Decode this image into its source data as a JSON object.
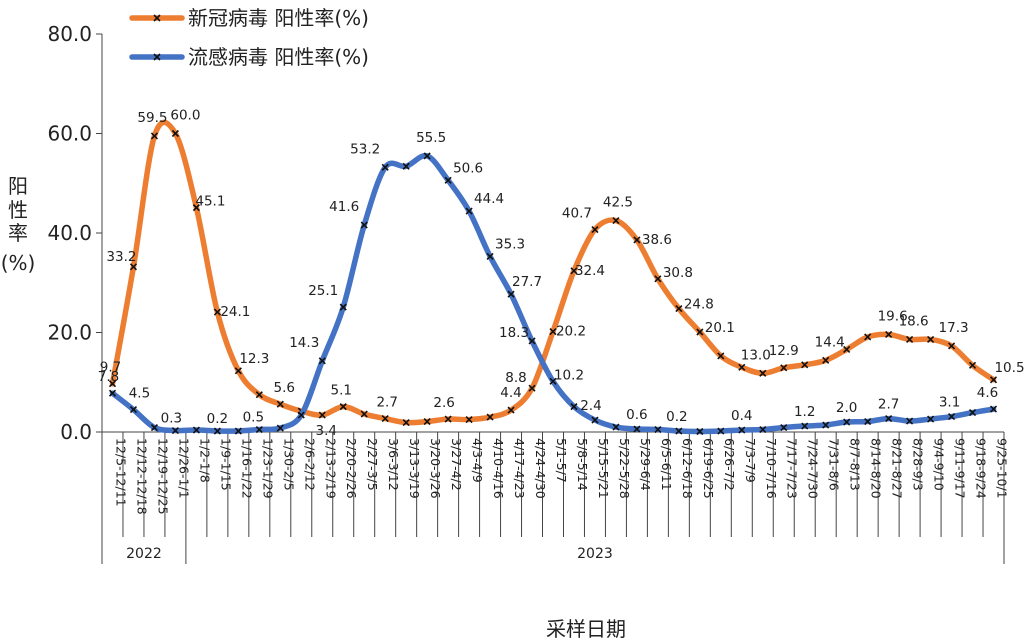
{
  "chart_data": {
    "type": "line",
    "xlabel": "采样日期",
    "ylabel": [
      "阳",
      "性",
      "率",
      "(%)"
    ],
    "ylim": [
      0,
      80
    ],
    "yticks": [
      "0.0",
      "20.0",
      "40.0",
      "60.0",
      "80.0"
    ],
    "grid": false,
    "legend_position": "top-left",
    "categories": [
      "12/5-12/11",
      "12/12-12/18",
      "12/19-12/25",
      "12/26-1/1",
      "1/2-1/8",
      "1/9-1/15",
      "1/16-1/22",
      "1/23-1/29",
      "1/30-2/5",
      "2/6-2/12",
      "2/13-2/19",
      "2/20-2/26",
      "2/27-3/5",
      "3/6-3/12",
      "3/13-3/19",
      "3/20-3/26",
      "3/27-4/2",
      "4/3-4/9",
      "4/10-4/16",
      "4/17-4/23",
      "4/24-4/30",
      "5/1-5/7",
      "5/8-5/14",
      "5/15-5/21",
      "5/22-5/28",
      "5/29-6/4",
      "6/5-6/11",
      "6/12-6/18",
      "6/19-6/25",
      "6/26-7/2",
      "7/3-7/9",
      "7/10-7/16",
      "7/17-7/23",
      "7/24-7/30",
      "7/31-8/6",
      "8/7-8/13",
      "8/14-8/20",
      "8/21-8/27",
      "8/28-9/3",
      "9/4-9/10",
      "9/11-9/17",
      "9/18-9/24",
      "9/25-10/1"
    ],
    "year_groups": [
      {
        "label": "2022",
        "count": 4
      },
      {
        "label": "2023",
        "count": 39
      }
    ],
    "series": [
      {
        "name": "新冠病毒 阳性率(%)",
        "color": "#ED7D31",
        "values": [
          9.7,
          33.2,
          59.5,
          60.0,
          45.1,
          24.1,
          12.3,
          7.5,
          5.6,
          4.2,
          3.4,
          5.1,
          3.6,
          2.7,
          1.9,
          2.1,
          2.6,
          2.5,
          3.0,
          4.4,
          8.8,
          20.2,
          32.4,
          40.7,
          42.5,
          38.6,
          30.8,
          24.8,
          20.1,
          15.3,
          13.0,
          11.8,
          12.9,
          13.5,
          14.4,
          16.6,
          19.1,
          19.6,
          18.6,
          18.6,
          17.3,
          13.4,
          10.5
        ],
        "labels": {
          "0": "9.7",
          "1": "33.2",
          "2": "59.5",
          "3": "60.0",
          "4": "45.1",
          "5": "24.1",
          "6": "12.3",
          "8": "5.6",
          "10": "3.4",
          "11": "5.1",
          "13": "2.7",
          "16": "2.6",
          "19": "4.4",
          "20": "8.8",
          "21": "20.2",
          "22": "32.4",
          "23": "40.7",
          "24": "42.5",
          "25": "38.6",
          "26": "30.8",
          "27": "24.8",
          "28": "20.1",
          "30": "13.0",
          "32": "12.9",
          "34": "14.4",
          "37": "19.6",
          "38": "18.6",
          "40": "17.3",
          "42": "10.5"
        }
      },
      {
        "name": "流感病毒 阳性率(%)",
        "color": "#4472C4",
        "values": [
          7.8,
          4.5,
          0.9,
          0.3,
          0.4,
          0.2,
          0.2,
          0.5,
          0.8,
          3.4,
          14.3,
          25.1,
          41.6,
          53.2,
          53.4,
          55.5,
          50.6,
          44.4,
          35.3,
          27.7,
          18.3,
          10.2,
          5.1,
          2.4,
          1.0,
          0.6,
          0.5,
          0.2,
          0.1,
          0.2,
          0.4,
          0.5,
          0.9,
          1.2,
          1.4,
          2.0,
          2.1,
          2.7,
          2.2,
          2.6,
          3.1,
          3.9,
          4.6
        ],
        "labels": {
          "0": "7.8",
          "1": "4.5",
          "3": "0.3",
          "5": "0.2",
          "7": "0.5",
          "10": "14.3",
          "11": "25.1",
          "12": "41.6",
          "13": "53.2",
          "15": "55.5",
          "16": "50.6",
          "17": "44.4",
          "18": "35.3",
          "19": "27.7",
          "20": "18.3",
          "21": "10.2",
          "23": "2.4",
          "25": "0.6",
          "27": "0.2",
          "30": "0.4",
          "33": "1.2",
          "35": "2.0",
          "37": "2.7",
          "40": "3.1",
          "42": "4.6"
        }
      }
    ]
  }
}
